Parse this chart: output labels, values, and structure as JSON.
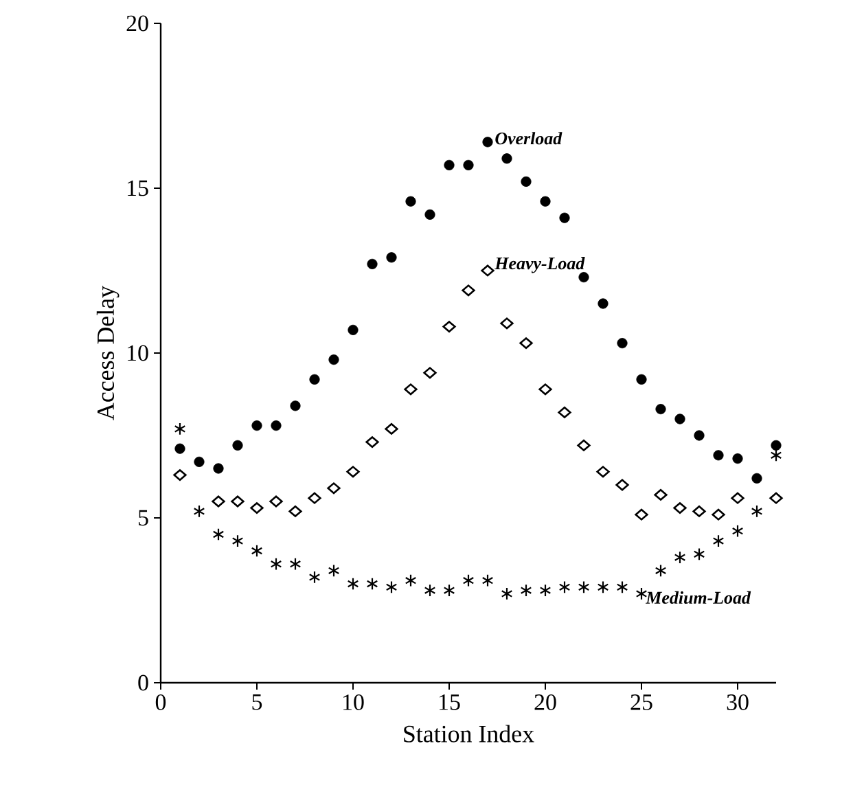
{
  "chart_data": {
    "type": "scatter",
    "xlabel": "Station Index",
    "ylabel": "Access Delay",
    "xlim": [
      0,
      32
    ],
    "ylim": [
      0,
      20
    ],
    "xticks": [
      0,
      5,
      10,
      15,
      20,
      25,
      30
    ],
    "yticks": [
      0,
      5,
      10,
      15,
      20
    ],
    "grid": false,
    "legend": false,
    "x": [
      1,
      2,
      3,
      4,
      5,
      6,
      7,
      8,
      9,
      10,
      11,
      12,
      13,
      14,
      15,
      16,
      17,
      18,
      19,
      20,
      21,
      22,
      23,
      24,
      25,
      26,
      27,
      28,
      29,
      30,
      31,
      32
    ],
    "series": [
      {
        "name": "Overload",
        "color": "#000000",
        "marker": "circle",
        "values": [
          7.1,
          6.7,
          6.5,
          7.2,
          7.8,
          7.8,
          8.4,
          9.2,
          9.8,
          10.7,
          12.7,
          12.9,
          14.6,
          14.2,
          15.7,
          15.7,
          16.4,
          15.9,
          15.2,
          14.6,
          14.1,
          12.3,
          11.5,
          10.3,
          9.2,
          8.3,
          8.0,
          7.5,
          6.9,
          6.8,
          6.2,
          7.2
        ]
      },
      {
        "name": "Heavy-Load",
        "color": "#000000",
        "marker": "diamond",
        "values": [
          6.3,
          null,
          5.5,
          5.5,
          5.3,
          5.5,
          5.2,
          5.6,
          5.9,
          6.4,
          7.3,
          7.7,
          8.9,
          9.4,
          10.8,
          11.9,
          12.5,
          10.9,
          10.3,
          8.9,
          8.2,
          7.2,
          6.4,
          6.0,
          5.1,
          5.7,
          5.3,
          5.2,
          5.1,
          5.6,
          null,
          5.6
        ]
      },
      {
        "name": "Medium-Load",
        "color": "#000000",
        "marker": "cross",
        "values": [
          7.7,
          5.2,
          4.5,
          4.3,
          4.0,
          3.6,
          3.6,
          3.2,
          3.4,
          3.0,
          3.0,
          2.9,
          3.1,
          2.8,
          2.8,
          3.1,
          3.1,
          2.7,
          2.8,
          2.8,
          2.9,
          2.9,
          2.9,
          2.9,
          2.7,
          3.4,
          3.8,
          3.9,
          4.3,
          4.6,
          5.2,
          6.9
        ]
      }
    ]
  }
}
